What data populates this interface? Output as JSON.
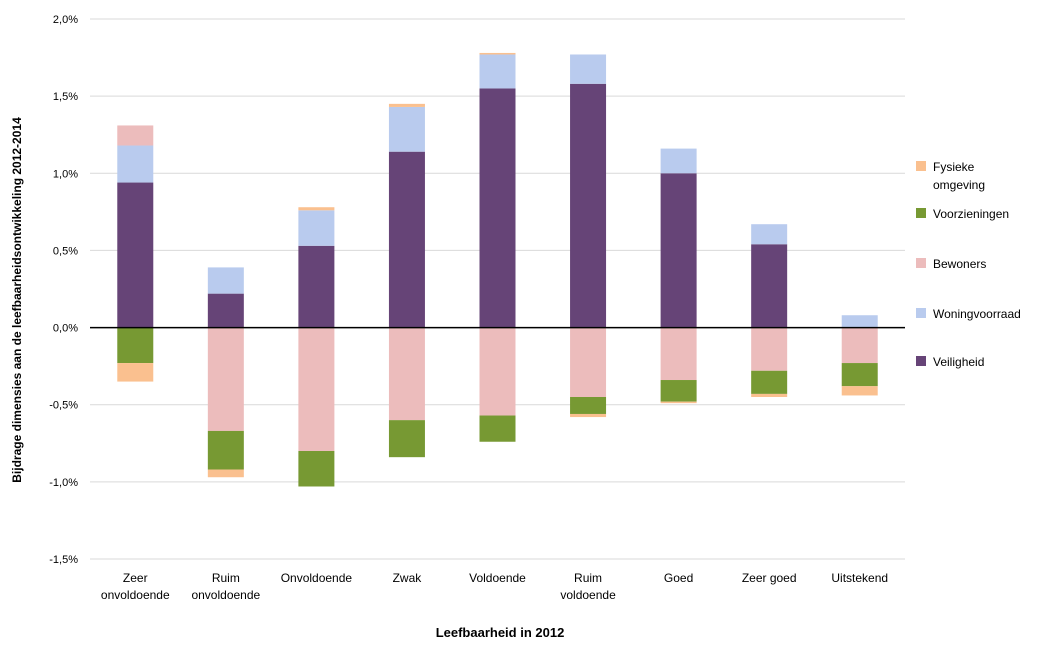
{
  "chart_data": {
    "type": "bar",
    "stacked": true,
    "xlabel": "Leefbaarheid in 2012",
    "ylabel": "Bijdrage dimensies aan de leefbaarheidsontwikkeling 2012-2014",
    "ylim": [
      -1.5,
      2.0
    ],
    "yticks": [
      -1.5,
      -1.0,
      -0.5,
      0.0,
      0.5,
      1.0,
      1.5,
      2.0
    ],
    "ytick_labels": [
      "-1,5%",
      "-1,0%",
      "-0,5%",
      "0,0%",
      "0,5%",
      "1,0%",
      "1,5%",
      "2,0%"
    ],
    "grid": true,
    "legend_position": "right",
    "categories": [
      [
        "Zeer",
        "onvoldoende"
      ],
      [
        "Ruim",
        "onvoldoende"
      ],
      [
        "Onvoldoende"
      ],
      [
        "Zwak"
      ],
      [
        "Voldoende"
      ],
      [
        "Ruim",
        "voldoende"
      ],
      [
        "Goed"
      ],
      [
        "Zeer goed"
      ],
      [
        "Uitstekend"
      ]
    ],
    "series": [
      {
        "name": "Veiligheid",
        "color": "#664477",
        "values": [
          0.94,
          0.22,
          0.53,
          1.14,
          1.55,
          1.58,
          1.0,
          0.54,
          0.0
        ]
      },
      {
        "name": "Woningvoorraad",
        "color": "#b9cbee",
        "values": [
          0.24,
          0.17,
          0.23,
          0.29,
          0.22,
          0.19,
          0.16,
          0.13,
          0.08
        ]
      },
      {
        "name": "Bewoners",
        "color": "#ecbcbc",
        "values": [
          0.13,
          -0.67,
          -0.8,
          -0.6,
          -0.57,
          -0.45,
          -0.34,
          -0.28,
          -0.23
        ]
      },
      {
        "name": "Voorzieningen",
        "color": "#779933",
        "values": [
          -0.23,
          -0.25,
          -0.23,
          -0.24,
          -0.17,
          -0.11,
          -0.14,
          -0.15,
          -0.15
        ]
      },
      {
        "name": "Fysieke omgeving",
        "color": "#fac08f",
        "values": [
          -0.12,
          -0.05,
          0.02,
          0.02,
          0.01,
          -0.02,
          -0.01,
          -0.02,
          -0.06
        ]
      }
    ],
    "legend": [
      {
        "label": [
          "Fysieke",
          "omgeving"
        ],
        "color": "#fac08f"
      },
      {
        "label": [
          "Voorzieningen"
        ],
        "color": "#779933"
      },
      {
        "label": [
          "Bewoners"
        ],
        "color": "#ecbcbc"
      },
      {
        "label": [
          "Woningvoorraad"
        ],
        "color": "#b9cbee"
      },
      {
        "label": [
          "Veiligheid"
        ],
        "color": "#664477"
      }
    ]
  }
}
